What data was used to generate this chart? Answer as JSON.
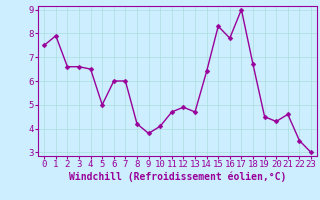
{
  "x": [
    0,
    1,
    2,
    3,
    4,
    5,
    6,
    7,
    8,
    9,
    10,
    11,
    12,
    13,
    14,
    15,
    16,
    17,
    18,
    19,
    20,
    21,
    22,
    23
  ],
  "y": [
    7.5,
    7.9,
    6.6,
    6.6,
    6.5,
    5.0,
    6.0,
    6.0,
    4.2,
    3.8,
    4.1,
    4.7,
    4.9,
    4.7,
    6.4,
    8.3,
    7.8,
    9.0,
    6.7,
    4.5,
    4.3,
    4.6,
    3.5,
    3.0
  ],
  "line_color": "#990099",
  "marker_color": "#990099",
  "bg_color": "#cceeff",
  "grid_color": "#aadddd",
  "xlabel": "Windchill (Refroidissement éolien,°C)",
  "ylim": [
    3,
    9
  ],
  "xlim": [
    -0.5,
    23.5
  ],
  "yticks": [
    3,
    4,
    5,
    6,
    7,
    8,
    9
  ],
  "xticks": [
    0,
    1,
    2,
    3,
    4,
    5,
    6,
    7,
    8,
    9,
    10,
    11,
    12,
    13,
    14,
    15,
    16,
    17,
    18,
    19,
    20,
    21,
    22,
    23
  ],
  "xlabel_color": "#990099",
  "tick_color": "#990099",
  "spine_color": "#990099",
  "linewidth": 1.0,
  "markersize": 2.5,
  "tick_fontsize": 6.5,
  "xlabel_fontsize": 7.0
}
